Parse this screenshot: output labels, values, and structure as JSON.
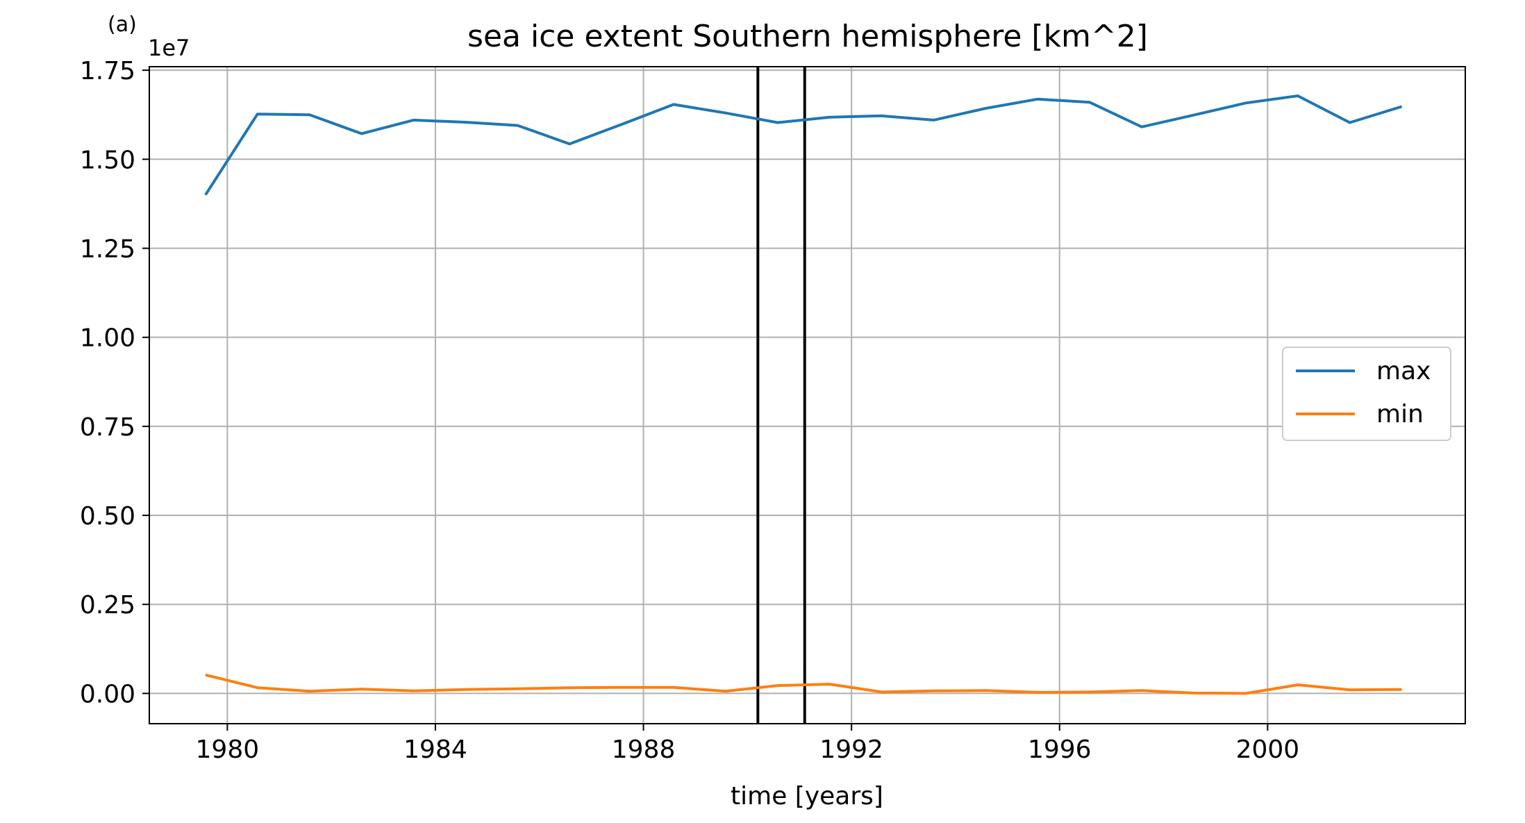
{
  "panel_label": "(a)",
  "chart_data": {
    "type": "line",
    "title": "sea ice extent Southern hemisphere [km^2]",
    "xlabel": "time [years]",
    "ylabel": "",
    "offset_text": "1e7",
    "xlim": [
      1978.5,
      2003.8
    ],
    "ylim": [
      -0.085,
      1.76
    ],
    "x_ticks": [
      1980,
      1984,
      1988,
      1992,
      1996,
      2000
    ],
    "x_tick_labels": [
      "1980",
      "1984",
      "1988",
      "1992",
      "1996",
      "2000"
    ],
    "y_ticks": [
      0.0,
      0.25,
      0.5,
      0.75,
      1.0,
      1.25,
      1.5,
      1.75
    ],
    "y_tick_labels": [
      "0.00",
      "0.25",
      "0.50",
      "0.75",
      "1.00",
      "1.25",
      "1.50",
      "1.75"
    ],
    "grid": true,
    "legend_position": "center-right",
    "x": [
      1979.58,
      1980.58,
      1981.58,
      1982.58,
      1983.58,
      1984.58,
      1985.58,
      1986.58,
      1987.58,
      1988.58,
      1989.58,
      1990.58,
      1991.58,
      1992.58,
      1993.58,
      1994.58,
      1995.58,
      1996.58,
      1997.58,
      1998.58,
      1999.58,
      2000.58,
      2001.58,
      2002.58
    ],
    "series": [
      {
        "name": "max",
        "color": "#1f77b4",
        "values": [
          1.4,
          1.627,
          1.625,
          1.572,
          1.61,
          1.604,
          1.595,
          1.543,
          1.598,
          1.654,
          1.63,
          1.603,
          1.618,
          1.622,
          1.61,
          1.643,
          1.669,
          1.66,
          1.591,
          1.624,
          1.658,
          1.678,
          1.603,
          1.648
        ]
      },
      {
        "name": "min",
        "color": "#ff7f0e",
        "values": [
          0.052,
          0.016,
          0.006,
          0.012,
          0.007,
          0.011,
          0.013,
          0.016,
          0.017,
          0.017,
          0.006,
          0.022,
          0.026,
          0.004,
          0.007,
          0.008,
          0.003,
          0.004,
          0.008,
          0.001,
          0.0,
          0.024,
          0.01,
          0.011
        ]
      }
    ],
    "vertical_lines": [
      {
        "x": 1990.2,
        "color": "#000000"
      },
      {
        "x": 1991.1,
        "color": "#000000"
      }
    ]
  }
}
